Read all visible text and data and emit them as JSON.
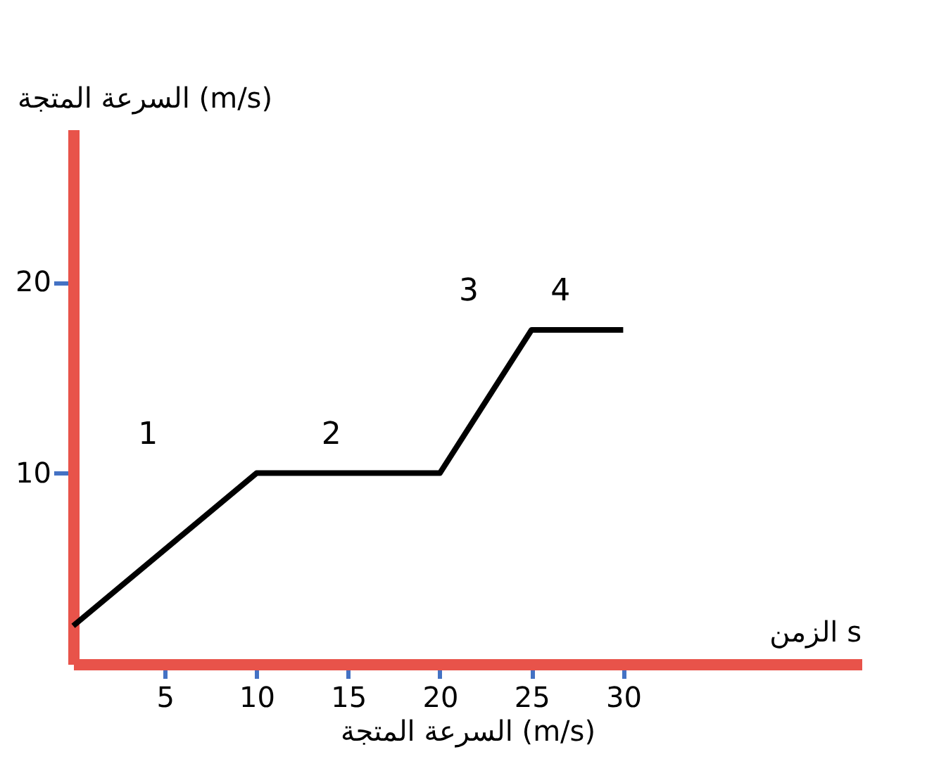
{
  "chart_data": {
    "type": "line",
    "xlabel": "السرعة المتجة (m/s)",
    "ylabel": "السرعة المتجة (m/s)",
    "x": [
      0,
      10,
      20,
      25,
      30
    ],
    "series": [
      {
        "color": "#000000",
        "values": [
          2,
          10,
          10,
          17.5,
          17.5
        ]
      }
    ],
    "xlim": [
      0,
      43
    ],
    "ylim": [
      0,
      28
    ],
    "xticks": [
      5,
      10,
      15,
      20,
      25,
      30
    ],
    "yticks": [
      10,
      20
    ],
    "grid": false,
    "marker": "none",
    "line_style": "solid",
    "annotations": [
      "1",
      "2",
      "3",
      "4",
      "الزمن s"
    ]
  }
}
